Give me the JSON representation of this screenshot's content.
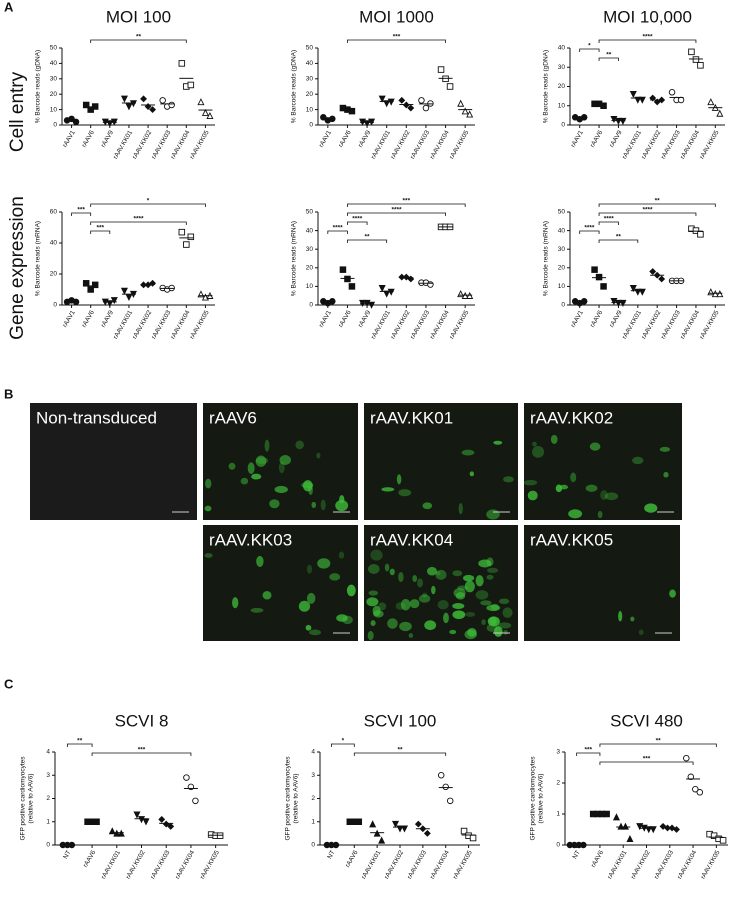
{
  "panel_labels": [
    "A",
    "B",
    "C"
  ],
  "row_labels": [
    "Cell entry",
    "Gene expression"
  ],
  "images": [
    "Non-transduced",
    "rAAV6",
    "rAAV.KK01",
    "rAAV.KK02",
    "rAAV.KK03",
    "rAAV.KK04",
    "rAAV.KK05"
  ],
  "chart_data": [
    {
      "type": "dot",
      "title": "MOI 100",
      "ylabel": [
        "% Barcode reads (gDNA)"
      ],
      "categories": [
        "rAAV1",
        "rAAV6",
        "rAAV9",
        "rAAV.KK01",
        "rAAV.KK02",
        "rAAV.KK03",
        "rAAV.KK04",
        "rAAV.KK05"
      ],
      "markers": [
        "circle",
        "square",
        "triangle-down",
        "triangle-down",
        "diamond",
        "open-circle",
        "open-square",
        "open-triangle"
      ],
      "points": [
        [
          3,
          4,
          2
        ],
        [
          13,
          10,
          12
        ],
        [
          2,
          1,
          2
        ],
        [
          17,
          12,
          14
        ],
        [
          17,
          12,
          10
        ],
        [
          16,
          12,
          13
        ],
        [
          40,
          25,
          26
        ],
        [
          15,
          8,
          6
        ]
      ],
      "means": [
        3,
        11.7,
        1.7,
        14.3,
        13,
        13.7,
        30.3,
        9.7
      ],
      "ylim": [
        0,
        50
      ],
      "yticks": [
        0,
        10,
        20,
        30,
        40,
        50
      ],
      "comparisons": [
        {
          "from": "rAAV6",
          "to": "rAAV.KK04",
          "label": "**"
        }
      ]
    },
    {
      "type": "dot",
      "title": "MOI 1000",
      "ylabel": [
        "% Barcode reads (gDNA)"
      ],
      "categories": [
        "rAAV1",
        "rAAV6",
        "rAAV9",
        "rAAV.KK01",
        "rAAV.KK02",
        "rAAV.KK03",
        "rAAV.KK04",
        "rAAV.KK05"
      ],
      "markers": [
        "circle",
        "square",
        "triangle-down",
        "triangle-down",
        "diamond",
        "open-circle",
        "open-square",
        "open-triangle"
      ],
      "points": [
        [
          5,
          3,
          4
        ],
        [
          11,
          10,
          9
        ],
        [
          2,
          1,
          2
        ],
        [
          17,
          14,
          15
        ],
        [
          16,
          13,
          11
        ],
        [
          16,
          11,
          14
        ],
        [
          36,
          30,
          25
        ],
        [
          14,
          9,
          7
        ]
      ],
      "means": [
        4,
        10,
        1.7,
        15.3,
        13.3,
        13.7,
        30.3,
        10
      ],
      "ylim": [
        0,
        50
      ],
      "yticks": [
        0,
        10,
        20,
        30,
        40,
        50
      ],
      "comparisons": [
        {
          "from": "rAAV6",
          "to": "rAAV.KK04",
          "label": "***"
        }
      ]
    },
    {
      "type": "dot",
      "title": "MOI 10,000",
      "ylabel": [
        "% Barcode reads (gDNA)"
      ],
      "categories": [
        "rAAV1",
        "rAAV6",
        "rAAV9",
        "rAAV.KK01",
        "rAAV.KK02",
        "rAAV.KK03",
        "rAAV.KK04",
        "rAAV.KK05"
      ],
      "markers": [
        "circle",
        "square",
        "triangle-down",
        "triangle-down",
        "diamond",
        "open-circle",
        "open-square",
        "open-triangle"
      ],
      "points": [
        [
          4,
          3,
          4
        ],
        [
          11,
          11,
          10
        ],
        [
          3,
          2,
          2
        ],
        [
          16,
          13,
          13
        ],
        [
          14,
          12,
          13
        ],
        [
          17,
          13,
          13
        ],
        [
          38,
          34,
          31
        ],
        [
          12,
          9,
          6
        ]
      ],
      "means": [
        3.7,
        10.7,
        2.3,
        14,
        13,
        14.3,
        34.3,
        9
      ],
      "ylim": [
        0,
        40
      ],
      "yticks": [
        0,
        10,
        20,
        30,
        40
      ],
      "comparisons": [
        {
          "from": "rAAV6",
          "to": "rAAV.KK04",
          "label": "****"
        },
        {
          "from": "rAAV1",
          "to": "rAAV6",
          "label": "*"
        },
        {
          "from": "rAAV6",
          "to": "rAAV9",
          "label": "**"
        }
      ]
    },
    {
      "type": "dot",
      "ylabel": [
        "% Barcode reads (mRNA)"
      ],
      "categories": [
        "rAAV1",
        "rAAV6",
        "rAAV9",
        "rAAV.KK01",
        "rAAV.KK02",
        "rAAV.KK03",
        "rAAV.KK04",
        "rAAV.KK05"
      ],
      "markers": [
        "circle",
        "square",
        "triangle-down",
        "triangle-down",
        "diamond",
        "open-circle",
        "open-square",
        "open-triangle"
      ],
      "points": [
        [
          2,
          3,
          2
        ],
        [
          14,
          10,
          13
        ],
        [
          2,
          1,
          3
        ],
        [
          9,
          5,
          7
        ],
        [
          13,
          13,
          14
        ],
        [
          11,
          10,
          11
        ],
        [
          47,
          39,
          44
        ],
        [
          7,
          5,
          6
        ]
      ],
      "means": [
        2.3,
        12.3,
        2,
        7,
        13.3,
        10.7,
        43.3,
        6
      ],
      "ylim": [
        0,
        60
      ],
      "yticks": [
        0,
        20,
        40,
        60
      ],
      "comparisons": [
        {
          "from": "rAAV6",
          "to": "rAAV.KK05",
          "label": "*"
        },
        {
          "from": "rAAV1",
          "to": "rAAV6",
          "label": "***"
        },
        {
          "from": "rAAV6",
          "to": "rAAV.KK04",
          "label": "****"
        },
        {
          "from": "rAAV6",
          "to": "rAAV9",
          "label": "***"
        }
      ]
    },
    {
      "type": "dot",
      "ylabel": [
        "% Barcode reads (mRNA)"
      ],
      "categories": [
        "rAAV1",
        "rAAV6",
        "rAAV9",
        "rAAV.KK01",
        "rAAV.KK02",
        "rAAV.KK03",
        "rAAV.KK04",
        "rAAV.KK05"
      ],
      "markers": [
        "circle",
        "square",
        "triangle-down",
        "triangle-down",
        "diamond",
        "open-circle",
        "open-square",
        "open-triangle"
      ],
      "points": [
        [
          2,
          1,
          2
        ],
        [
          19,
          14,
          10
        ],
        [
          1,
          1,
          0
        ],
        [
          9,
          6,
          7
        ],
        [
          15,
          15,
          14
        ],
        [
          12,
          12,
          11
        ],
        [
          42,
          42,
          42
        ],
        [
          6,
          5,
          5
        ]
      ],
      "means": [
        1.7,
        14.3,
        0.7,
        7.3,
        14.7,
        11.7,
        42,
        5.3
      ],
      "ylim": [
        0,
        50
      ],
      "yticks": [
        0,
        10,
        20,
        30,
        40,
        50
      ],
      "comparisons": [
        {
          "from": "rAAV6",
          "to": "rAAV.KK05",
          "label": "***"
        },
        {
          "from": "rAAV6",
          "to": "rAAV.KK04",
          "label": "****"
        },
        {
          "from": "rAAV6",
          "to": "rAAV9",
          "label": "****"
        },
        {
          "from": "rAAV1",
          "to": "rAAV6",
          "label": "****"
        },
        {
          "from": "rAAV6",
          "to": "rAAV.KK01",
          "label": "**"
        }
      ]
    },
    {
      "type": "dot",
      "ylabel": [
        "% Barcode reads (mRNA)"
      ],
      "categories": [
        "rAAV1",
        "rAAV6",
        "rAAV9",
        "rAAV.KK01",
        "rAAV.KK02",
        "rAAV.KK03",
        "rAAV.KK04",
        "rAAV.KK05"
      ],
      "markers": [
        "circle",
        "square",
        "triangle-down",
        "triangle-down",
        "diamond",
        "open-circle",
        "open-square",
        "open-triangle"
      ],
      "points": [
        [
          2,
          1,
          2
        ],
        [
          19,
          15,
          10
        ],
        [
          2,
          1,
          1
        ],
        [
          9,
          7,
          7
        ],
        [
          18,
          16,
          14
        ],
        [
          13,
          13,
          13
        ],
        [
          41,
          40,
          38
        ],
        [
          7,
          6,
          6
        ]
      ],
      "means": [
        1.7,
        14.7,
        1.3,
        7.7,
        16,
        13,
        39.7,
        6.3
      ],
      "ylim": [
        0,
        50
      ],
      "yticks": [
        0,
        10,
        20,
        30,
        40,
        50
      ],
      "comparisons": [
        {
          "from": "rAAV6",
          "to": "rAAV.KK05",
          "label": "**"
        },
        {
          "from": "rAAV6",
          "to": "rAAV.KK04",
          "label": "****"
        },
        {
          "from": "rAAV6",
          "to": "rAAV9",
          "label": "****"
        },
        {
          "from": "rAAV1",
          "to": "rAAV6",
          "label": "****"
        },
        {
          "from": "rAAV6",
          "to": "rAAV.KK01",
          "label": "**"
        }
      ]
    },
    {
      "type": "dot",
      "title": "SCVI 8",
      "ylabel": [
        "GFP positive cardiomyocytes",
        "(relative to  AAV6)"
      ],
      "categories": [
        "NT",
        "rAAV6",
        "rAAV.KK01",
        "rAAV.KK02",
        "rAAV.KK03",
        "rAAV.KK04",
        "rAAV.KK05"
      ],
      "markers": [
        "circle",
        "square",
        "triangle",
        "triangle-down",
        "diamond",
        "open-circle",
        "open-square"
      ],
      "points": [
        [
          0,
          0,
          0
        ],
        [
          1,
          1,
          1
        ],
        [
          0.6,
          0.5,
          0.5
        ],
        [
          1.3,
          1.1,
          1.0
        ],
        [
          1.1,
          0.9,
          0.8
        ],
        [
          2.9,
          2.5,
          1.9
        ],
        [
          0.45,
          0.4,
          0.4
        ]
      ],
      "means": [
        0,
        1,
        0.53,
        1.13,
        0.93,
        2.43,
        0.42
      ],
      "ylim": [
        0,
        4
      ],
      "yticks": [
        0,
        1,
        2,
        3,
        4
      ],
      "comparisons": [
        {
          "from": "NT",
          "to": "rAAV6",
          "label": "**"
        },
        {
          "from": "rAAV6",
          "to": "rAAV.KK04",
          "label": "***"
        }
      ]
    },
    {
      "type": "dot",
      "title": "SCVI 100",
      "ylabel": [
        "GFP positive cardiomyocytes",
        "(relative to  AAV6)"
      ],
      "categories": [
        "NT",
        "rAAV6",
        "rAAV.KK01",
        "rAAV.KK02",
        "rAAV.KK03",
        "rAAV.KK04",
        "rAAV.KK05"
      ],
      "markers": [
        "circle",
        "square",
        "triangle",
        "triangle-down",
        "diamond",
        "open-circle",
        "open-square"
      ],
      "points": [
        [
          0,
          0,
          0
        ],
        [
          1,
          1,
          1
        ],
        [
          0.9,
          0.5,
          0.2
        ],
        [
          0.9,
          0.7,
          0.7
        ],
        [
          0.9,
          0.7,
          0.5
        ],
        [
          3.0,
          2.5,
          1.9
        ],
        [
          0.6,
          0.4,
          0.3
        ]
      ],
      "means": [
        0,
        1,
        0.53,
        0.77,
        0.7,
        2.47,
        0.43
      ],
      "ylim": [
        0,
        4
      ],
      "yticks": [
        0,
        1,
        2,
        3,
        4
      ],
      "comparisons": [
        {
          "from": "NT",
          "to": "rAAV6",
          "label": "*"
        },
        {
          "from": "rAAV6",
          "to": "rAAV.KK04",
          "label": "**"
        }
      ]
    },
    {
      "type": "dot",
      "title": "SCVI 480",
      "ylabel": [
        "GFP positive cardiomyocytes",
        "(relative to  AAV6)"
      ],
      "categories": [
        "NT",
        "rAAV6",
        "rAAV.KK01",
        "rAAV.KK02",
        "rAAV.KK03",
        "rAAV.KK04",
        "rAAV.KK05"
      ],
      "markers": [
        "circle",
        "square",
        "triangle",
        "triangle-down",
        "diamond",
        "open-circle",
        "open-square"
      ],
      "points": [
        [
          0,
          0,
          0,
          0
        ],
        [
          1,
          1,
          1,
          1
        ],
        [
          0.9,
          0.6,
          0.6,
          0.2
        ],
        [
          0.6,
          0.55,
          0.5,
          0.5
        ],
        [
          0.6,
          0.55,
          0.55,
          0.5
        ],
        [
          2.8,
          2.2,
          1.8,
          1.7
        ],
        [
          0.35,
          0.3,
          0.2,
          0.15
        ]
      ],
      "means": [
        0,
        1,
        0.58,
        0.54,
        0.55,
        2.13,
        0.25
      ],
      "ylim": [
        0,
        3
      ],
      "yticks": [
        0,
        1,
        2,
        3
      ],
      "comparisons": [
        {
          "from": "rAAV6",
          "to": "rAAV.KK05",
          "label": "**"
        },
        {
          "from": "NT",
          "to": "rAAV6",
          "label": "***"
        },
        {
          "from": "rAAV6",
          "to": "rAAV.KK04",
          "label": "***"
        }
      ]
    }
  ]
}
